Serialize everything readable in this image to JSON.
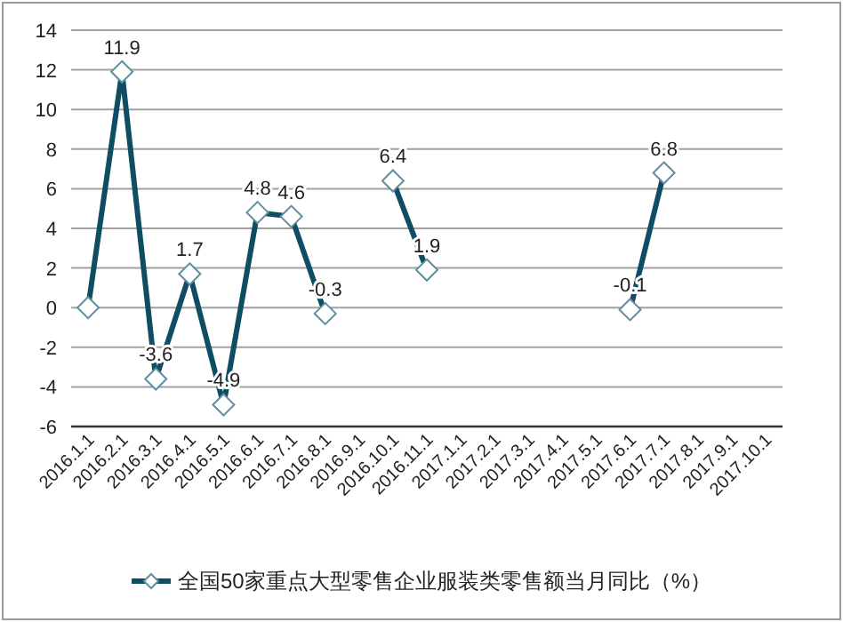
{
  "chart_data": {
    "type": "line",
    "categories": [
      "2016.1.1",
      "2016.2.1",
      "2016.3.1",
      "2016.4.1",
      "2016.5.1",
      "2016.6.1",
      "2016.7.1",
      "2016.8.1",
      "2016.9.1",
      "2016.10.1",
      "2016.11.1",
      "2017.1.1",
      "2017.2.1",
      "2017.3.1",
      "2017.4.1",
      "2017.5.1",
      "2017.6.1",
      "2017.7.1",
      "2017.8.1",
      "2017.9.1",
      "2017.10.1"
    ],
    "series": [
      {
        "name": "全国50家重点大型零售企业服装类零售额当月同比（%）",
        "color": "#0e4d64",
        "values": [
          0,
          11.9,
          -3.6,
          1.7,
          -4.9,
          4.8,
          4.6,
          -0.3,
          null,
          6.4,
          1.9,
          null,
          null,
          null,
          null,
          null,
          -0.1,
          6.8,
          null,
          null,
          null
        ],
        "value_labels": [
          null,
          "11.9",
          "-3.6",
          "1.7",
          "-4.9",
          "4.8",
          "4.6",
          "-0.3",
          null,
          "6.4",
          "1.9",
          null,
          null,
          null,
          null,
          null,
          "-0.1",
          "6.8",
          null,
          null,
          null
        ]
      }
    ],
    "ylim": [
      -6,
      14
    ],
    "yticks": [
      -6,
      -4,
      -2,
      0,
      2,
      4,
      6,
      8,
      10,
      12,
      14
    ],
    "grid": "y",
    "legend": "bottom",
    "marker": "diamond"
  }
}
